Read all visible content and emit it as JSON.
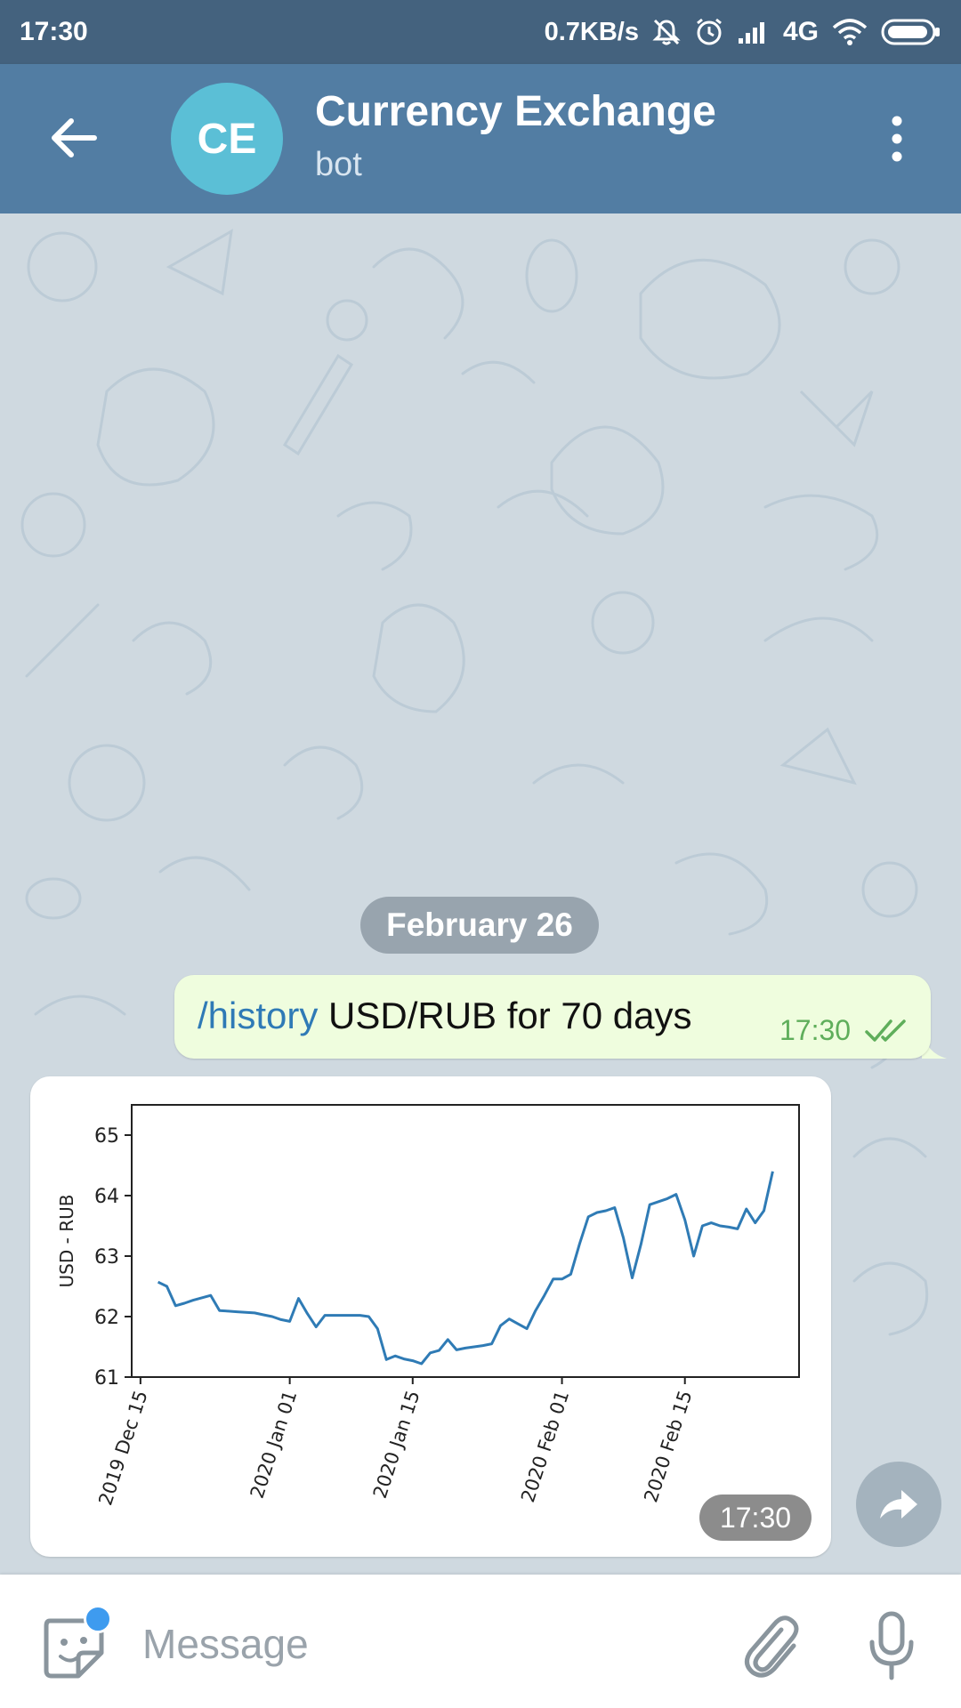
{
  "status_bar": {
    "time": "17:30",
    "net_speed": "0.7KB/s",
    "network": "4G",
    "icons": [
      "mute-icon",
      "alarm-icon",
      "signal-icon",
      "wifi-icon",
      "battery-icon"
    ]
  },
  "header": {
    "avatar_initials": "CE",
    "title": "Currency Exchange",
    "subtitle": "bot",
    "avatar_color": "#5bbfd6",
    "bar_color": "#527da3"
  },
  "chat": {
    "date_label": "February 26",
    "outgoing_message": {
      "command": "/history",
      "text": " USD/RUB for 70 days",
      "time": "17:30",
      "status": "read"
    },
    "incoming_image": {
      "time": "17:30"
    }
  },
  "chart_data": {
    "type": "line",
    "ylabel": "USD - RUB",
    "xlabel": "",
    "ylim": [
      61,
      65.5
    ],
    "yticks": [
      61,
      62,
      63,
      64,
      65
    ],
    "xlim": [
      "2019-12-14",
      "2020-02-28"
    ],
    "xtick_labels": [
      "2019 Dec 15",
      "2020 Jan 01",
      "2020 Jan 15",
      "2020 Feb 01",
      "2020 Feb 15"
    ],
    "xtick_dates": [
      "2019-12-15",
      "2020-01-01",
      "2020-01-15",
      "2020-02-01",
      "2020-02-15"
    ],
    "grid": false,
    "series_color": "#2f7bb5",
    "x": [
      "2019-12-17",
      "2019-12-18",
      "2019-12-19",
      "2019-12-20",
      "2019-12-21",
      "2019-12-23",
      "2019-12-24",
      "2019-12-25",
      "2019-12-26",
      "2019-12-27",
      "2019-12-28",
      "2019-12-29",
      "2019-12-30",
      "2019-12-31",
      "2020-01-01",
      "2020-01-02",
      "2020-01-03",
      "2020-01-04",
      "2020-01-05",
      "2020-01-06",
      "2020-01-07",
      "2020-01-08",
      "2020-01-09",
      "2020-01-10",
      "2020-01-11",
      "2020-01-12",
      "2020-01-13",
      "2020-01-14",
      "2020-01-15",
      "2020-01-16",
      "2020-01-17",
      "2020-01-18",
      "2020-01-19",
      "2020-01-20",
      "2020-01-21",
      "2020-01-22",
      "2020-01-23",
      "2020-01-24",
      "2020-01-25",
      "2020-01-26",
      "2020-01-27",
      "2020-01-28",
      "2020-01-29",
      "2020-01-30",
      "2020-01-31",
      "2020-02-01",
      "2020-02-02",
      "2020-02-03",
      "2020-02-04",
      "2020-02-05",
      "2020-02-06",
      "2020-02-07",
      "2020-02-08",
      "2020-02-09",
      "2020-02-10",
      "2020-02-11",
      "2020-02-12",
      "2020-02-13",
      "2020-02-14",
      "2020-02-15",
      "2020-02-16",
      "2020-02-17",
      "2020-02-18",
      "2020-02-19",
      "2020-02-20",
      "2020-02-21",
      "2020-02-22",
      "2020-02-23",
      "2020-02-24",
      "2020-02-25"
    ],
    "y": [
      62.57,
      62.5,
      62.18,
      62.22,
      62.27,
      62.35,
      62.1,
      62.09,
      62.08,
      62.07,
      62.06,
      62.03,
      62.0,
      61.95,
      61.92,
      62.3,
      62.05,
      61.83,
      62.02,
      62.02,
      62.02,
      62.02,
      62.02,
      62.0,
      61.8,
      61.29,
      61.35,
      61.3,
      61.27,
      61.22,
      61.4,
      61.44,
      61.62,
      61.45,
      61.48,
      61.5,
      61.52,
      61.55,
      61.85,
      61.96,
      61.88,
      61.8,
      62.1,
      62.35,
      62.62,
      62.62,
      62.7,
      63.2,
      63.65,
      63.72,
      63.75,
      63.8,
      63.3,
      62.64,
      63.2,
      63.85,
      63.9,
      63.95,
      64.02,
      63.6,
      63.0,
      63.5,
      63.55,
      63.5,
      63.48,
      63.45,
      63.78,
      63.55,
      63.75,
      64.4
    ]
  },
  "input_bar": {
    "placeholder": "Message",
    "icons": [
      "sticker-icon",
      "paperclip-icon",
      "microphone-icon"
    ]
  }
}
